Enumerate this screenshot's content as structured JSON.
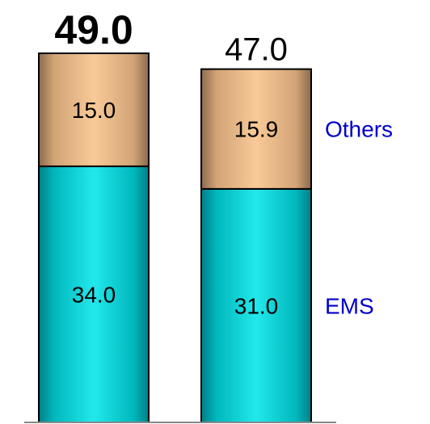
{
  "chart_data": {
    "type": "bar",
    "stacked": true,
    "categories": [
      "",
      ""
    ],
    "series": [
      {
        "name": "EMS",
        "values": [
          34.0,
          31.0
        ],
        "color": "#00cccc"
      },
      {
        "name": "Others",
        "values": [
          15.0,
          15.9
        ],
        "color": "#f5c08e"
      }
    ],
    "segment_labels": [
      [
        "34.0",
        "15.0"
      ],
      [
        "31.0",
        "15.9"
      ]
    ],
    "totals": [
      49.0,
      47.0
    ],
    "total_labels": [
      "49.0",
      "47.0"
    ],
    "total_emphasis": [
      true,
      false
    ],
    "legend_text_color": "#0000cc",
    "legend_placement": "right",
    "axis_line_color": "#888888",
    "title": "",
    "xlabel": "",
    "ylabel": "",
    "ylim": [
      0,
      49.0
    ],
    "grid": false
  }
}
